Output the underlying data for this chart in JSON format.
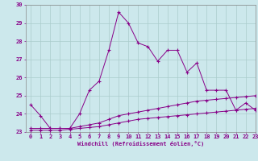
{
  "xlabel": "Windchill (Refroidissement éolien,°C)",
  "background_color": "#cce8ec",
  "line_color": "#880088",
  "grid_color": "#aacccc",
  "x_values": [
    0,
    1,
    2,
    3,
    4,
    5,
    6,
    7,
    8,
    9,
    10,
    11,
    12,
    13,
    14,
    15,
    16,
    17,
    18,
    19,
    20,
    21,
    22,
    23
  ],
  "line1_y": [
    24.5,
    23.9,
    23.2,
    23.2,
    23.2,
    24.0,
    25.3,
    25.8,
    27.5,
    29.6,
    29.0,
    27.9,
    27.7,
    26.9,
    27.5,
    27.5,
    26.3,
    26.8,
    25.3,
    25.3,
    25.3,
    24.2,
    24.6,
    24.2
  ],
  "line2_y": [
    23.2,
    23.2,
    23.2,
    23.2,
    23.2,
    23.3,
    23.4,
    23.5,
    23.7,
    23.9,
    24.0,
    24.1,
    24.2,
    24.3,
    24.4,
    24.5,
    24.6,
    24.7,
    24.75,
    24.8,
    24.85,
    24.9,
    24.95,
    25.0
  ],
  "line3_y": [
    23.1,
    23.1,
    23.1,
    23.1,
    23.15,
    23.2,
    23.25,
    23.3,
    23.4,
    23.5,
    23.6,
    23.7,
    23.75,
    23.8,
    23.85,
    23.9,
    23.95,
    24.0,
    24.05,
    24.1,
    24.15,
    24.2,
    24.25,
    24.3
  ],
  "ylim": [
    23.0,
    30.0
  ],
  "yticks": [
    23,
    24,
    25,
    26,
    27,
    28,
    29,
    30
  ],
  "xlim": [
    -0.5,
    23
  ],
  "xticks": [
    0,
    1,
    2,
    3,
    4,
    5,
    6,
    7,
    8,
    9,
    10,
    11,
    12,
    13,
    14,
    15,
    16,
    17,
    18,
    19,
    20,
    21,
    22,
    23
  ]
}
